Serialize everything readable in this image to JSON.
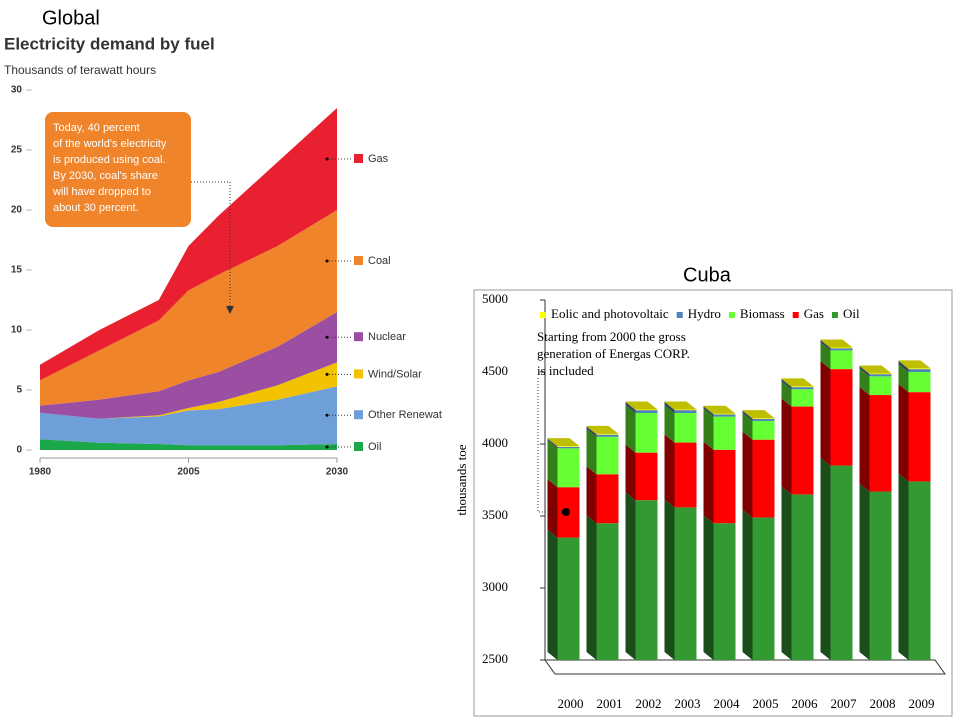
{
  "chart_data": [
    {
      "type": "area",
      "panel_label": "Global",
      "title": "Electricity demand by fuel",
      "subtitle": "Thousands of terawatt hours",
      "x": [
        1980,
        1990,
        2000,
        2005,
        2010,
        2020,
        2030
      ],
      "series": [
        {
          "name": "Oil",
          "color": "#1aa84a",
          "values": [
            0.9,
            0.6,
            0.5,
            0.4,
            0.4,
            0.4,
            0.5
          ]
        },
        {
          "name": "Other Renewat",
          "color": "#6f9fd8",
          "values": [
            2.2,
            2.0,
            2.3,
            2.9,
            3.0,
            3.8,
            4.8
          ]
        },
        {
          "name": "Wind/Solar",
          "color": "#f2c200",
          "values": [
            0,
            0,
            0.1,
            0.2,
            0.6,
            1.2,
            2.0
          ]
        },
        {
          "name": "Nuclear",
          "color": "#9a4fa3",
          "values": [
            0.6,
            1.6,
            2.0,
            2.3,
            2.5,
            3.2,
            4.2
          ]
        },
        {
          "name": "Coal",
          "color": "#f0842a",
          "values": [
            2.1,
            4.1,
            5.9,
            7.5,
            8.1,
            8.4,
            8.5
          ]
        },
        {
          "name": "Gas",
          "color": "#e8202f",
          "values": [
            1.3,
            1.7,
            1.7,
            3.7,
            4.9,
            7.0,
            8.5
          ]
        }
      ],
      "xlim": [
        1980,
        2030
      ],
      "xticks": [
        1980,
        2005,
        2030
      ],
      "ylim": [
        0,
        30
      ],
      "yticks": [
        0,
        5,
        10,
        15,
        20,
        25,
        30
      ],
      "annotation": [
        "Today, 40 percent",
        "of the world's electricity",
        "is produced using coal.",
        "By 2030, coal's share",
        "will have dropped to",
        "about 30 percent."
      ]
    },
    {
      "type": "bar",
      "panel_label": "Cuba",
      "ylabel": "thousands toe",
      "categories": [
        "2000",
        "2001",
        "2002",
        "2003",
        "2004",
        "2005",
        "2006",
        "2007",
        "2008",
        "2009"
      ],
      "series": [
        {
          "name": "Oil",
          "color": "#339933",
          "values": [
            3350,
            3450,
            3610,
            3560,
            3450,
            3490,
            3650,
            3850,
            3670,
            3740
          ]
        },
        {
          "name": "Gas",
          "color": "#ff0000",
          "values": [
            350,
            340,
            330,
            450,
            510,
            540,
            610,
            670,
            670,
            620
          ]
        },
        {
          "name": "Biomass",
          "color": "#66ff33",
          "values": [
            270,
            260,
            275,
            205,
            230,
            130,
            120,
            130,
            130,
            140
          ]
        },
        {
          "name": "Hydro",
          "color": "#4f81bd",
          "values": [
            10,
            15,
            20,
            20,
            15,
            15,
            15,
            15,
            15,
            20
          ]
        },
        {
          "name": "Eolic and photovoltaic",
          "color": "#ffff00",
          "values": [
            5,
            5,
            5,
            5,
            5,
            5,
            5,
            5,
            5,
            5
          ]
        }
      ],
      "ylim": [
        2500,
        5000
      ],
      "yticks": [
        2500,
        3000,
        3500,
        4000,
        4500,
        5000
      ],
      "annotation": [
        "Starting from 2000 the gross",
        "generation of Energas CORP.",
        "is included"
      ]
    }
  ]
}
